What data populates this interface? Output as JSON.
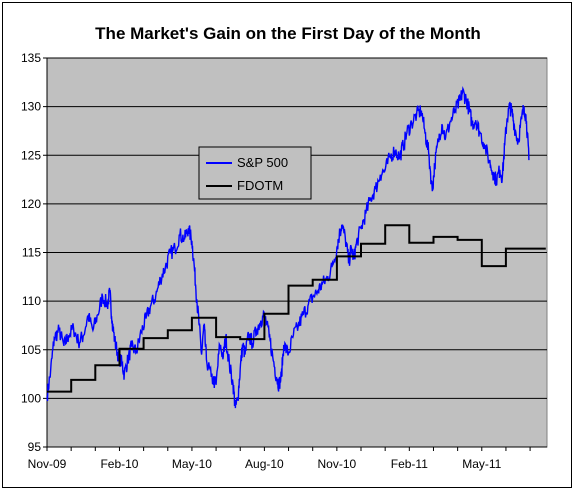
{
  "chart_data": {
    "type": "line",
    "title": "The Market's Gain on the First Day of the Month",
    "xlabel": "",
    "ylabel": "",
    "ylim": [
      95,
      135
    ],
    "yticks": [
      95,
      100,
      105,
      110,
      115,
      120,
      125,
      130,
      135
    ],
    "xlim": [
      0,
      20.7
    ],
    "xticks": [
      {
        "label": "Nov-09",
        "x": 0
      },
      {
        "label": "Feb-10",
        "x": 3
      },
      {
        "label": "May-10",
        "x": 6
      },
      {
        "label": "Aug-10",
        "x": 9
      },
      {
        "label": "Nov-10",
        "x": 12
      },
      {
        "label": "Feb-11",
        "x": 15
      },
      {
        "label": "May-11",
        "x": 18
      }
    ],
    "grid": true,
    "legend": "upper-center-left",
    "colors": {
      "sp500": "#0000ff",
      "fdotm": "#000000",
      "plot_bg": "#c0c0c0"
    },
    "series": [
      {
        "name": "S&P 500",
        "style": "noisy-line",
        "points": [
          [
            0.0,
            100.2
          ],
          [
            0.15,
            102.8
          ],
          [
            0.3,
            106.2
          ],
          [
            0.5,
            107.0
          ],
          [
            0.7,
            105.4
          ],
          [
            0.9,
            106.5
          ],
          [
            1.1,
            107.2
          ],
          [
            1.3,
            105.8
          ],
          [
            1.5,
            106.4
          ],
          [
            1.7,
            108.5
          ],
          [
            1.9,
            107.0
          ],
          [
            2.1,
            108.6
          ],
          [
            2.3,
            110.5
          ],
          [
            2.5,
            109.6
          ],
          [
            2.6,
            110.9
          ],
          [
            2.7,
            108.0
          ],
          [
            2.8,
            106.0
          ],
          [
            2.95,
            104.4
          ],
          [
            3.1,
            103.6
          ],
          [
            3.2,
            102.5
          ],
          [
            3.35,
            104.0
          ],
          [
            3.5,
            105.3
          ],
          [
            3.7,
            104.8
          ],
          [
            3.9,
            106.8
          ],
          [
            4.1,
            108.2
          ],
          [
            4.3,
            109.6
          ],
          [
            4.5,
            110.5
          ],
          [
            4.7,
            112.3
          ],
          [
            4.9,
            113.5
          ],
          [
            5.1,
            114.9
          ],
          [
            5.3,
            115.4
          ],
          [
            5.5,
            116.8
          ],
          [
            5.7,
            116.4
          ],
          [
            5.85,
            117.5
          ],
          [
            6.0,
            116.2
          ],
          [
            6.1,
            113.5
          ],
          [
            6.2,
            110.2
          ],
          [
            6.3,
            107.5
          ],
          [
            6.4,
            104.5
          ],
          [
            6.5,
            107.5
          ],
          [
            6.6,
            104.0
          ],
          [
            6.8,
            102.2
          ],
          [
            7.0,
            101.4
          ],
          [
            7.15,
            105.5
          ],
          [
            7.3,
            104.3
          ],
          [
            7.4,
            106.3
          ],
          [
            7.55,
            103.5
          ],
          [
            7.7,
            101.5
          ],
          [
            7.8,
            99.0
          ],
          [
            7.9,
            100.0
          ],
          [
            8.0,
            103.0
          ],
          [
            8.1,
            105.5
          ],
          [
            8.2,
            104.5
          ],
          [
            8.35,
            106.5
          ],
          [
            8.5,
            105.7
          ],
          [
            8.7,
            107.2
          ],
          [
            8.85,
            108.0
          ],
          [
            9.0,
            108.6
          ],
          [
            9.2,
            106.4
          ],
          [
            9.35,
            104.2
          ],
          [
            9.5,
            102.2
          ],
          [
            9.6,
            101.4
          ],
          [
            9.7,
            102.2
          ],
          [
            9.8,
            105.5
          ],
          [
            10.0,
            104.6
          ],
          [
            10.2,
            106.5
          ],
          [
            10.4,
            107.4
          ],
          [
            10.6,
            108.6
          ],
          [
            10.8,
            109.5
          ],
          [
            11.0,
            110.4
          ],
          [
            11.2,
            111.0
          ],
          [
            11.4,
            111.8
          ],
          [
            11.6,
            112.3
          ],
          [
            11.8,
            113.5
          ],
          [
            12.0,
            115.5
          ],
          [
            12.1,
            116.8
          ],
          [
            12.2,
            117.8
          ],
          [
            12.35,
            116.5
          ],
          [
            12.5,
            114.0
          ],
          [
            12.6,
            115.5
          ],
          [
            12.7,
            114.3
          ],
          [
            12.8,
            115.8
          ],
          [
            13.0,
            117.5
          ],
          [
            13.2,
            119.0
          ],
          [
            13.4,
            120.6
          ],
          [
            13.6,
            121.5
          ],
          [
            13.8,
            123.0
          ],
          [
            14.0,
            123.5
          ],
          [
            14.2,
            124.8
          ],
          [
            14.4,
            125.5
          ],
          [
            14.6,
            124.8
          ],
          [
            14.75,
            126.0
          ],
          [
            14.9,
            127.3
          ],
          [
            15.1,
            128.3
          ],
          [
            15.3,
            129.2
          ],
          [
            15.5,
            129.6
          ],
          [
            15.65,
            127.3
          ],
          [
            15.8,
            125.3
          ],
          [
            15.95,
            121.3
          ],
          [
            16.05,
            124.0
          ],
          [
            16.2,
            126.5
          ],
          [
            16.35,
            128.2
          ],
          [
            16.5,
            126.8
          ],
          [
            16.7,
            128.5
          ],
          [
            16.9,
            129.6
          ],
          [
            17.1,
            130.6
          ],
          [
            17.2,
            131.5
          ],
          [
            17.35,
            130.8
          ],
          [
            17.5,
            129.5
          ],
          [
            17.6,
            128.2
          ],
          [
            17.75,
            128.6
          ],
          [
            17.9,
            127.5
          ],
          [
            18.1,
            126.2
          ],
          [
            18.3,
            124.5
          ],
          [
            18.45,
            123.3
          ],
          [
            18.6,
            122.4
          ],
          [
            18.75,
            123.5
          ],
          [
            18.85,
            122.7
          ],
          [
            18.95,
            126.0
          ],
          [
            19.05,
            128.8
          ],
          [
            19.15,
            130.0
          ],
          [
            19.25,
            129.4
          ],
          [
            19.35,
            128.0
          ],
          [
            19.5,
            126.4
          ],
          [
            19.65,
            128.7
          ],
          [
            19.75,
            130.0
          ],
          [
            19.85,
            128.5
          ],
          [
            19.95,
            124.5
          ]
        ]
      },
      {
        "name": "FDOTM",
        "style": "step",
        "points": [
          [
            0.0,
            100.7
          ],
          [
            1.0,
            101.9
          ],
          [
            2.0,
            103.4
          ],
          [
            3.0,
            105.1
          ],
          [
            4.0,
            106.2
          ],
          [
            5.0,
            107.0
          ],
          [
            6.0,
            108.3
          ],
          [
            7.0,
            106.3
          ],
          [
            8.0,
            106.1
          ],
          [
            9.0,
            108.7
          ],
          [
            10.0,
            111.6
          ],
          [
            11.0,
            112.2
          ],
          [
            12.0,
            114.6
          ],
          [
            13.0,
            115.9
          ],
          [
            14.0,
            117.8
          ],
          [
            15.0,
            116.0
          ],
          [
            16.0,
            116.6
          ],
          [
            17.0,
            116.3
          ],
          [
            18.0,
            113.6
          ],
          [
            19.0,
            115.4
          ],
          [
            20.0,
            115.4
          ]
        ]
      }
    ]
  }
}
